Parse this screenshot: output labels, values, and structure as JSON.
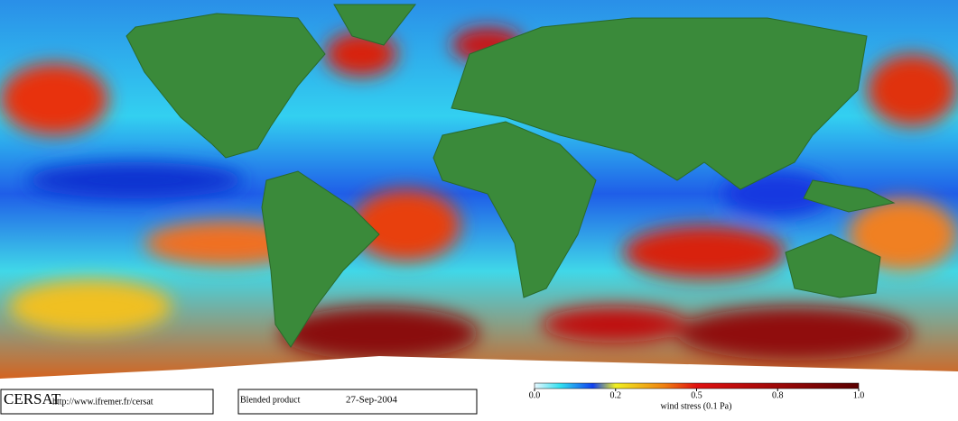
{
  "footer": {
    "logo": "CERSAT",
    "url": "http://www.ifremer.fr/cersat",
    "product": "Blended product",
    "date": "27-Sep-2004"
  },
  "colorbar": {
    "label": "wind stress (0.1 Pa)",
    "ticks": [
      {
        "value": 0,
        "label": "0.0"
      },
      {
        "value": 0.2,
        "label": "0.2"
      },
      {
        "value": 0.5,
        "label": "0.5"
      },
      {
        "value": 0.8,
        "label": "0.8"
      },
      {
        "value": 1,
        "label": "1.0"
      }
    ]
  }
}
